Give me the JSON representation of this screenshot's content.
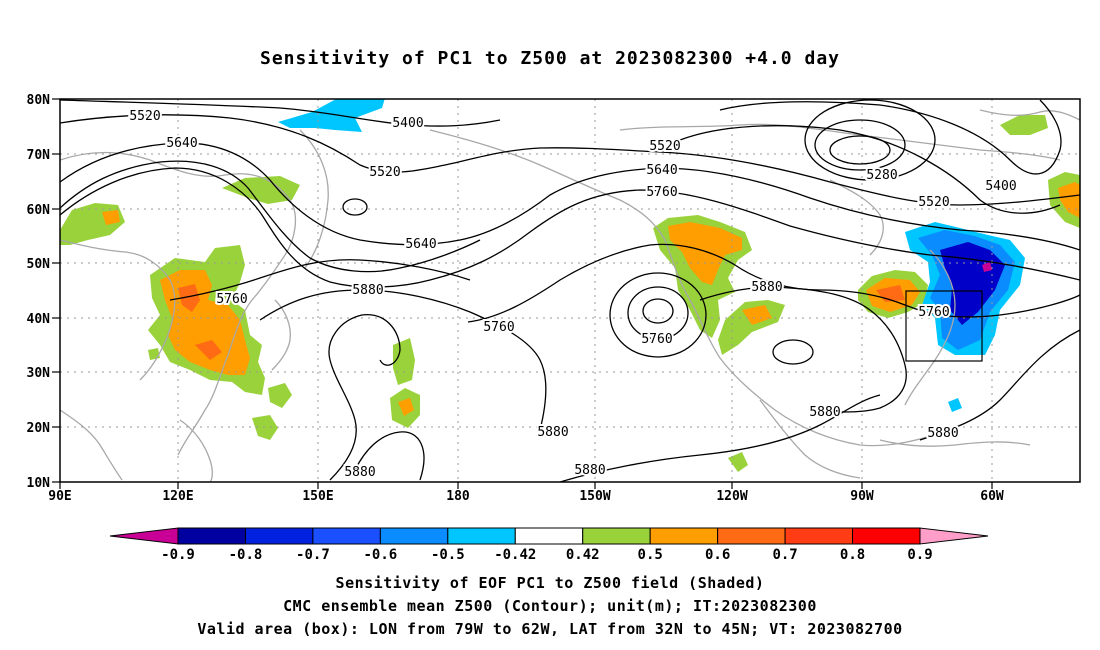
{
  "title": "Sensitivity of PC1 to Z500 at 2023082300 +4.0 day",
  "lat_labels": [
    "80N",
    "70N",
    "60N",
    "50N",
    "40N",
    "30N",
    "20N",
    "10N"
  ],
  "lon_labels": [
    "90E",
    "120E",
    "150E",
    "180",
    "150W",
    "120W",
    "90W",
    "60W"
  ],
  "contour_labels": {
    "c5520a": "5520",
    "c5640a": "5640",
    "c5520b": "5520",
    "c5400a": "5400",
    "c5640b": "5640",
    "c5760a": "5760",
    "c5880a": "5880",
    "c5760b": "5760",
    "c5760c": "5760",
    "c5520c": "5520",
    "c5640c": "5640",
    "c5760d": "5760",
    "c5280": "5280",
    "c5400b": "5400",
    "c5520d": "5520",
    "c5880b": "5880",
    "c5760e": "5760",
    "c5880c": "5880",
    "c5880d": "5880",
    "c5880e": "5880",
    "c5880f": "5880",
    "c5880g": "5880"
  },
  "colorbar": {
    "labels": [
      "-0.9",
      "-0.8",
      "-0.7",
      "-0.6",
      "-0.5",
      "-0.42",
      "0.42",
      "0.5",
      "0.6",
      "0.7",
      "0.8",
      "0.9"
    ],
    "colors": [
      "#0000a0",
      "#0022e0",
      "#1a50ff",
      "#0a8cff",
      "#00c6ff",
      "#ffffff",
      "#9ad23c",
      "#ff9e00",
      "#ff6a14",
      "#ff3c14",
      "#ff0000"
    ],
    "low_color": "#c80096",
    "high_color": "#ff9ec8"
  },
  "footer": {
    "line1": "Sensitivity of EOF PC1 to Z500 field (Shaded)",
    "line2": "CMC ensemble mean Z500 (Contour); unit(m); IT:2023082300",
    "line3": "Valid area (box): LON from 79W to 62W, LAT from 32N to 45N; VT: 2023082700"
  },
  "colors": {
    "contour": "#000000",
    "coastline": "#a8a8a8",
    "grid": "#9a9a9a",
    "green": "#9ad23c",
    "orange": "#ff9e00",
    "dark_orange": "#ff6a14",
    "cyan": "#00c6ff",
    "blue": "#0a8cff",
    "deep_blue": "#0000c8"
  }
}
